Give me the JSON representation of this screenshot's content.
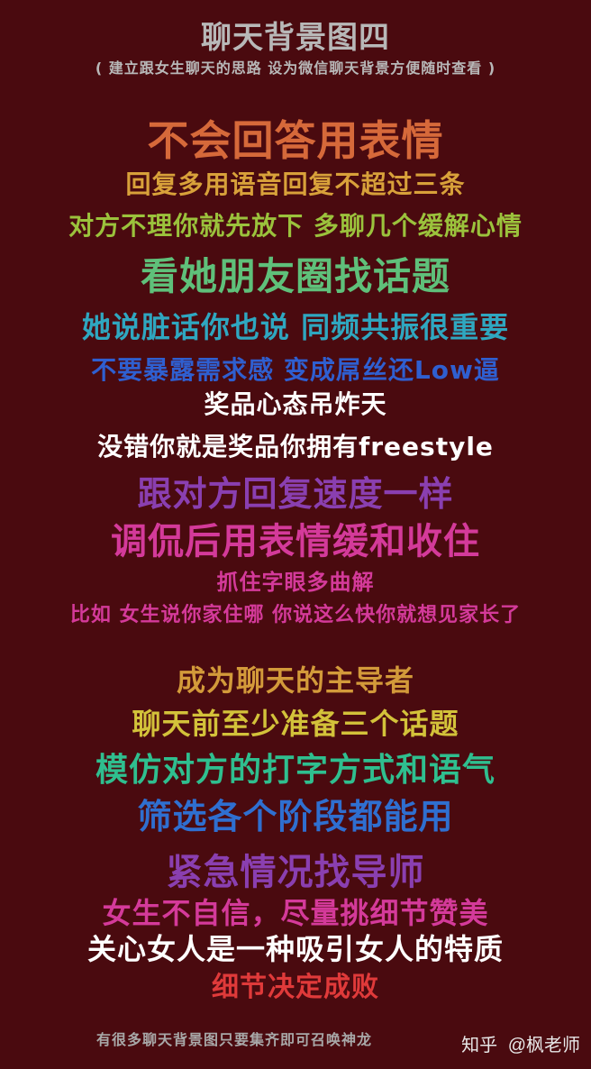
{
  "title": "聊天背景图四",
  "subtitle": "( 建立跟女生聊天的思路 设为微信聊天背景方便随时查看 )",
  "lines": [
    {
      "text": "不会回答用表情",
      "color": "#d6693a"
    },
    {
      "text": "回复多用语音回复不超过三条",
      "color": "#d8a13a"
    },
    {
      "text": "对方不理你就先放下 多聊几个缓解心情",
      "color": "#9bc23c"
    },
    {
      "text": "看她朋友圈找话题",
      "color": "#5fc07a"
    },
    {
      "text": "她说脏话你也说 同频共振很重要",
      "color": "#2fa7c0"
    },
    {
      "text": "不要暴露需求感 变成屌丝还Low逼",
      "color": "#2f5fd0"
    },
    {
      "text": "奖品心态吊炸天",
      "color": "#ffffff"
    },
    {
      "text": "没错你就是奖品你拥有freestyle",
      "color": "#ffffff"
    },
    {
      "text": "跟对方回复速度一样",
      "color": "#8a3fb0"
    },
    {
      "text": "调侃后用表情缓和收住",
      "color": "#d43a9a"
    },
    {
      "text": "抓住字眼多曲解",
      "color": "#d43a9a"
    },
    {
      "text": "比如 女生说你家住哪 你说这么快你就想见家长了",
      "color": "#d43a9a"
    },
    {
      "text": "成为聊天的主导者",
      "color": "#d39a3a"
    },
    {
      "text": "聊天前至少准备三个话题",
      "color": "#d3c23a"
    },
    {
      "text": "模仿对方的打字方式和语气",
      "color": "#2fbf8f"
    },
    {
      "text": "筛选各个阶段都能用",
      "color": "#2f6fd0"
    },
    {
      "text": "紧急情况找导师",
      "color": "#8a3fb0"
    },
    {
      "text": "女生不自信，尽量挑细节赞美",
      "color": "#d43a9a"
    },
    {
      "text": "关心女人是一种吸引女人的特质",
      "color": "#ffffff"
    },
    {
      "text": "细节决定成败",
      "color": "#e03a3a"
    }
  ],
  "footer": "有很多聊天背景图只要集齐即可召唤神龙",
  "watermark": {
    "site": "知乎",
    "author": "@枫老师"
  }
}
